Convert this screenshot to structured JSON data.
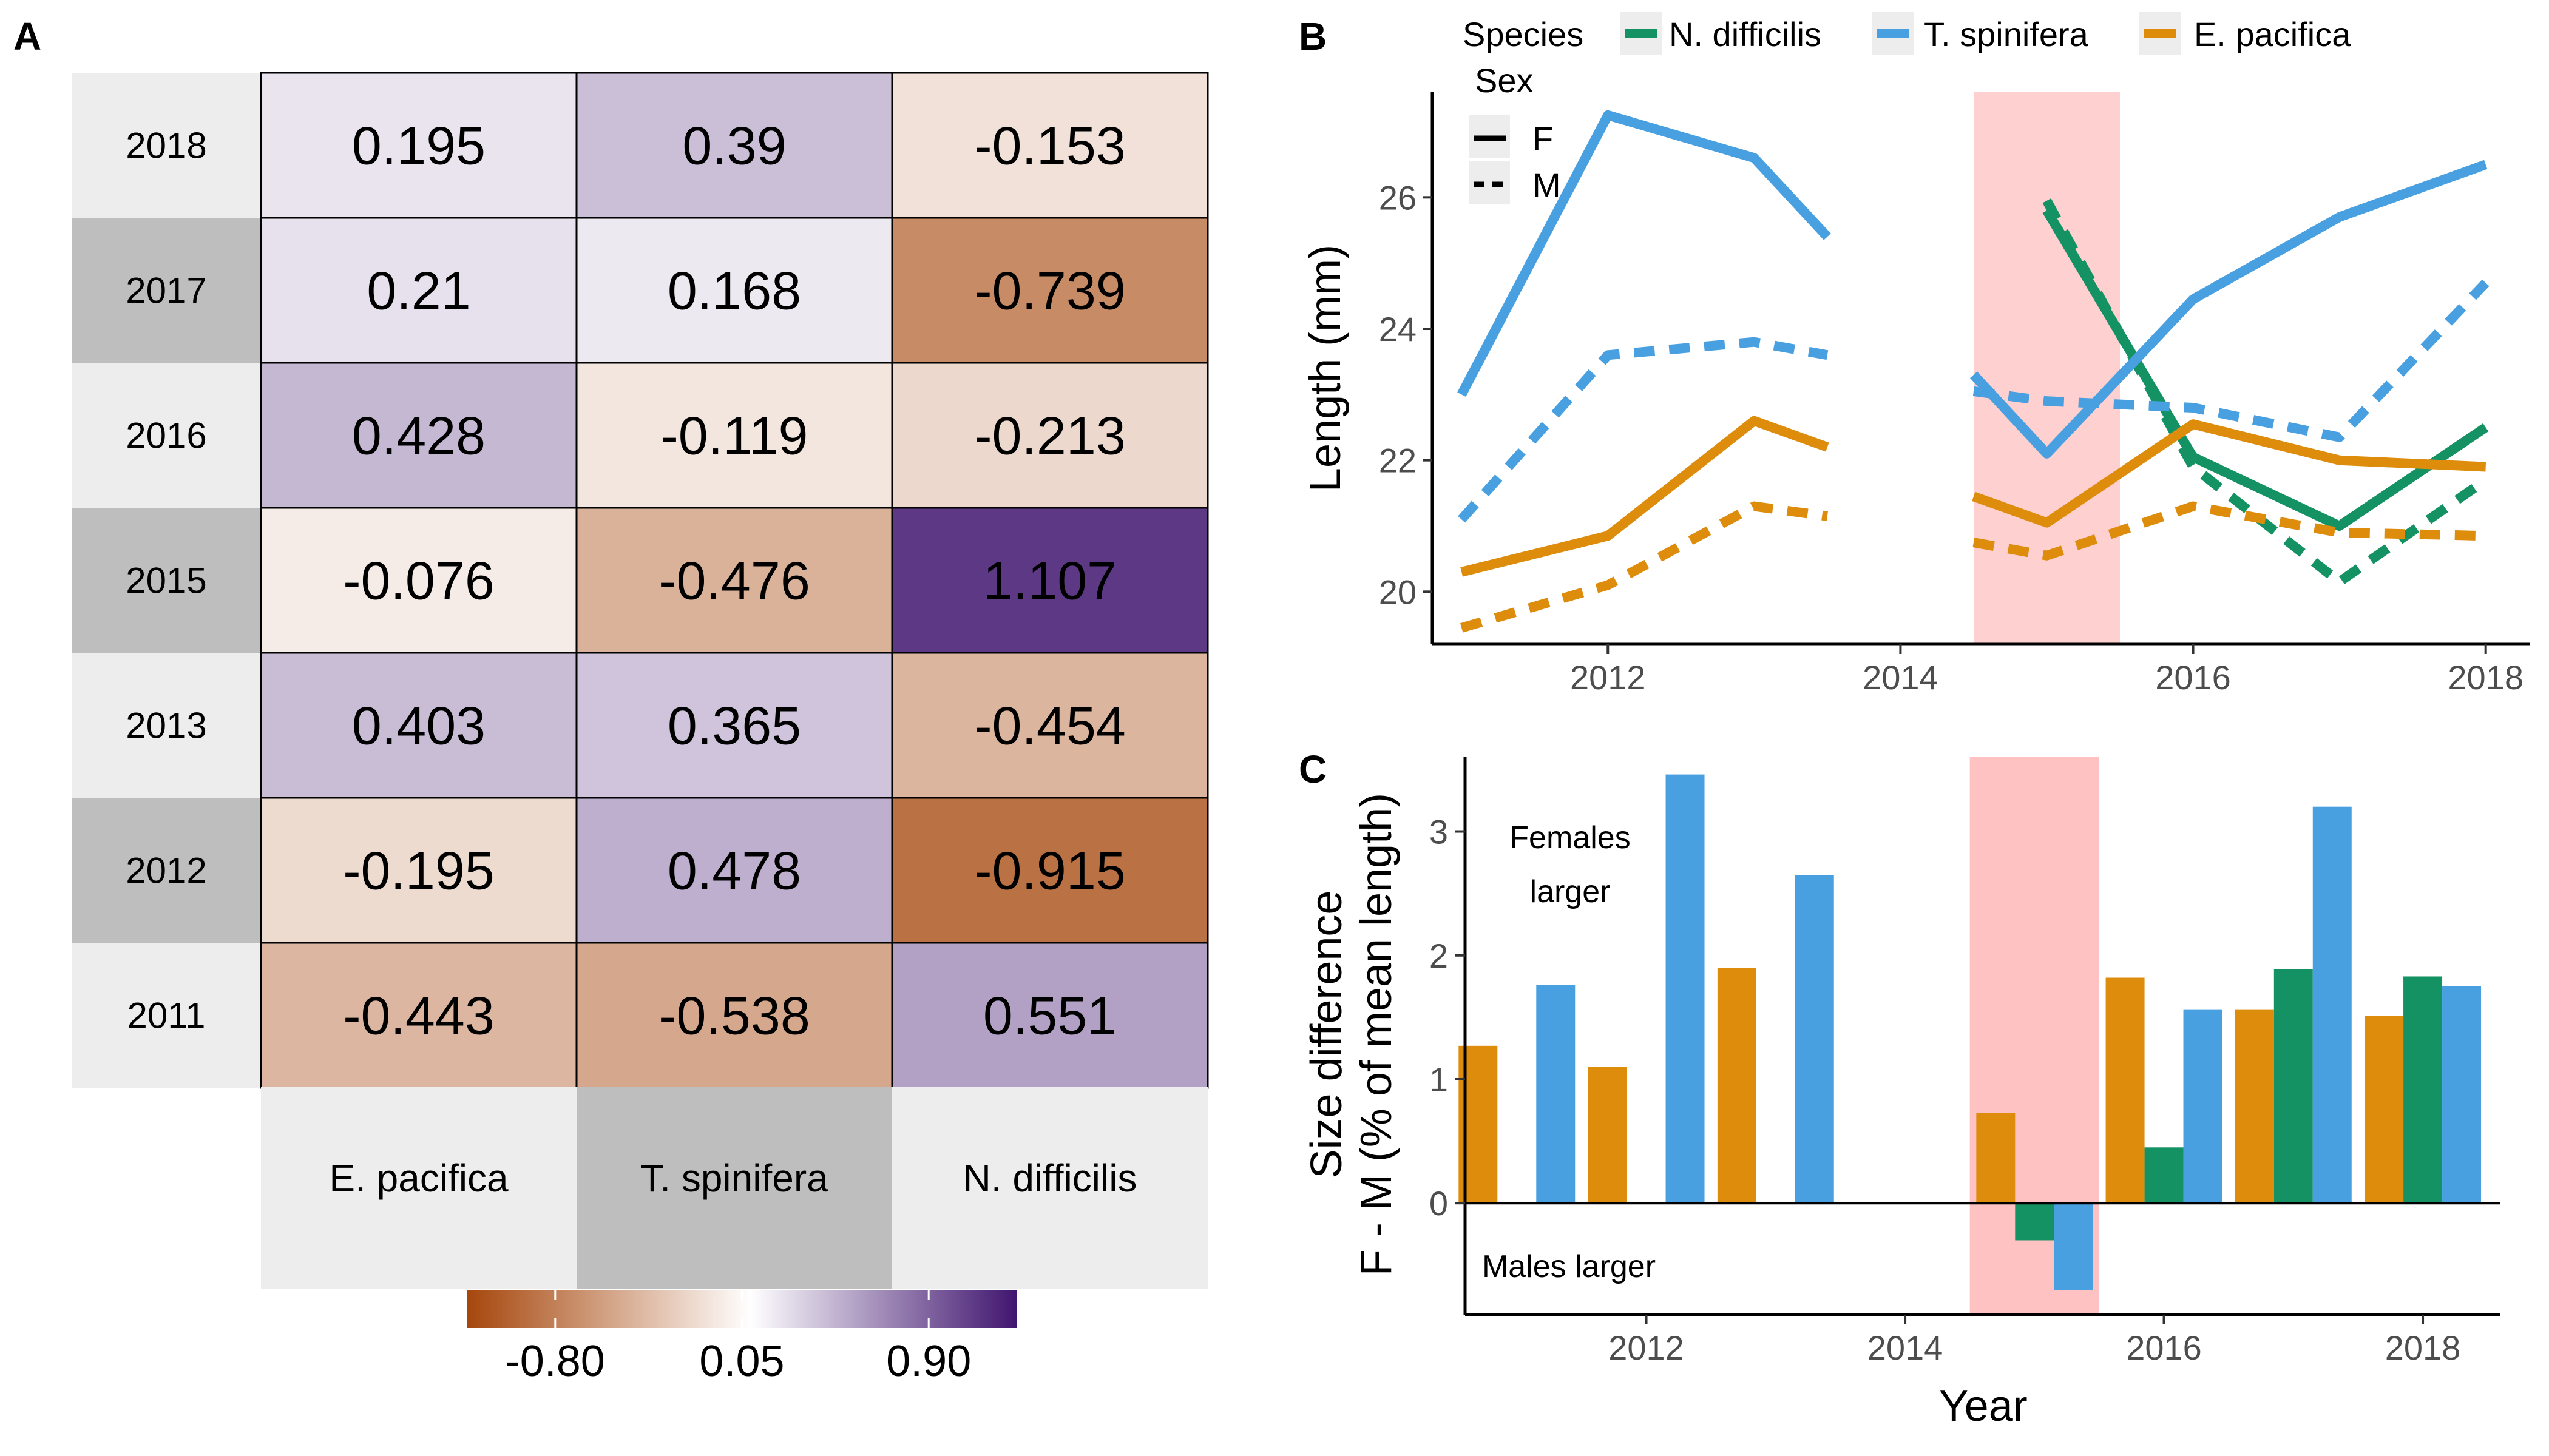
{
  "panels": {
    "a": "A",
    "b": "B",
    "c": "C"
  },
  "chart_data": [
    {
      "type": "heatmap",
      "rows": [
        "2018",
        "2017",
        "2016",
        "2015",
        "2013",
        "2012",
        "2011"
      ],
      "columns": [
        "E. pacifica",
        "T. spinifera",
        "N. difficilis"
      ],
      "values": [
        [
          "0.195",
          "0.39",
          "-0.153"
        ],
        [
          "0.21",
          "0.168",
          "-0.739"
        ],
        [
          "0.428",
          "-0.119",
          "-0.213"
        ],
        [
          "-0.076",
          "-0.476",
          "1.107"
        ],
        [
          "0.403",
          "0.365",
          "-0.454"
        ],
        [
          "-0.195",
          "0.478",
          "-0.915"
        ],
        [
          "-0.443",
          "-0.538",
          "0.551"
        ]
      ],
      "colorbar": {
        "labels": [
          "-0.80",
          "0.05",
          "0.90"
        ],
        "range": [
          -1.2,
          1.3
        ],
        "low_color": "#a6470d",
        "mid_color": "#ffffff",
        "high_color": "#40156f"
      }
    },
    {
      "type": "line",
      "ylabel": "Length (mm)",
      "xlim": [
        2010.8,
        2018.3
      ],
      "ylim": [
        19.2,
        27.6
      ],
      "x_ticks": [
        "2012",
        "2014",
        "2016",
        "2018"
      ],
      "y_ticks": [
        "20",
        "22",
        "24",
        "26"
      ],
      "highlight": {
        "from": 2014.5,
        "to": 2015.5,
        "color": "#ffd0d0"
      },
      "legend": {
        "species_title": "Species",
        "sex_title": "Sex",
        "sex_labels": [
          "F",
          "M"
        ]
      },
      "series": [
        {
          "name": "N. difficilis",
          "color": "#159264",
          "segments": [
            {
              "sex": "F",
              "points": [
                [
                  2015,
                  25.8
                ],
                [
                  2016,
                  22.05
                ],
                [
                  2017,
                  21.0
                ],
                [
                  2018,
                  22.5
                ]
              ]
            },
            {
              "sex": "M",
              "points": [
                [
                  2015,
                  25.95
                ],
                [
                  2016,
                  21.9
                ],
                [
                  2017,
                  20.15
                ],
                [
                  2018,
                  21.7
                ]
              ]
            }
          ]
        },
        {
          "name": "T. spinifera",
          "color": "#48a0e0",
          "segments": [
            {
              "sex": "F",
              "points": [
                [
                  2011,
                  23.0
                ],
                [
                  2012,
                  27.25
                ],
                [
                  2013,
                  26.6
                ],
                [
                  2013.5,
                  25.4
                ]
              ]
            },
            {
              "sex": "F",
              "points": [
                [
                  2014.5,
                  23.3
                ],
                [
                  2015,
                  22.1
                ],
                [
                  2016,
                  24.45
                ],
                [
                  2017,
                  25.7
                ],
                [
                  2018,
                  26.5
                ]
              ]
            },
            {
              "sex": "M",
              "points": [
                [
                  2011,
                  21.1
                ],
                [
                  2012,
                  23.6
                ],
                [
                  2013,
                  23.8
                ],
                [
                  2013.5,
                  23.6
                ]
              ]
            },
            {
              "sex": "M",
              "points": [
                [
                  2014.5,
                  23.05
                ],
                [
                  2015,
                  22.9
                ],
                [
                  2016,
                  22.8
                ],
                [
                  2017,
                  22.35
                ],
                [
                  2018,
                  24.7
                ]
              ]
            }
          ]
        },
        {
          "name": "E. pacifica",
          "color": "#de8c0c",
          "segments": [
            {
              "sex": "F",
              "points": [
                [
                  2011,
                  20.3
                ],
                [
                  2012,
                  20.85
                ],
                [
                  2013,
                  22.6
                ],
                [
                  2013.5,
                  22.2
                ]
              ]
            },
            {
              "sex": "F",
              "points": [
                [
                  2014.5,
                  21.45
                ],
                [
                  2015,
                  21.05
                ],
                [
                  2016,
                  22.55
                ],
                [
                  2017,
                  22.0
                ],
                [
                  2018,
                  21.9
                ]
              ]
            },
            {
              "sex": "M",
              "points": [
                [
                  2011,
                  19.45
                ],
                [
                  2012,
                  20.1
                ],
                [
                  2013,
                  21.3
                ],
                [
                  2013.5,
                  21.15
                ]
              ]
            },
            {
              "sex": "M",
              "points": [
                [
                  2014.5,
                  20.75
                ],
                [
                  2015,
                  20.55
                ],
                [
                  2016,
                  21.3
                ],
                [
                  2017,
                  20.9
                ],
                [
                  2018,
                  20.85
                ]
              ]
            }
          ]
        }
      ]
    },
    {
      "type": "bar",
      "xlabel": "Year",
      "ylabel_line1": "Size difference",
      "ylabel_line2": "F - M (% of mean length)",
      "xlim": [
        2010.6,
        2018.6
      ],
      "ylim": [
        -0.9,
        3.6
      ],
      "x_ticks": [
        "2012",
        "2014",
        "2016",
        "2018"
      ],
      "y_ticks": [
        "0",
        "1",
        "2",
        "3"
      ],
      "highlight": {
        "from": 2014.5,
        "to": 2015.5,
        "color": "#ffc2c2"
      },
      "annotation_top_1": "Females",
      "annotation_top_2": "larger",
      "annotation_bottom": "Males larger",
      "series": [
        {
          "name": "E. pacifica",
          "color": "#de8c0c",
          "points": [
            [
              2011,
              1.27
            ],
            [
              2012,
              1.1
            ],
            [
              2013,
              1.9
            ],
            [
              2015,
              0.73
            ],
            [
              2016,
              1.82
            ],
            [
              2017,
              1.56
            ],
            [
              2018,
              1.51
            ]
          ]
        },
        {
          "name": "N. difficilis",
          "color": "#159264",
          "points": [
            [
              2015,
              -0.3
            ],
            [
              2016,
              0.45
            ],
            [
              2017,
              1.89
            ],
            [
              2018,
              1.83
            ]
          ]
        },
        {
          "name": "T. spinifera",
          "color": "#48a0e0",
          "points": [
            [
              2011,
              1.76
            ],
            [
              2012,
              3.46
            ],
            [
              2013,
              2.65
            ],
            [
              2015,
              -0.7
            ],
            [
              2016,
              1.56
            ],
            [
              2017,
              3.2
            ],
            [
              2018,
              1.75
            ]
          ]
        }
      ]
    }
  ]
}
